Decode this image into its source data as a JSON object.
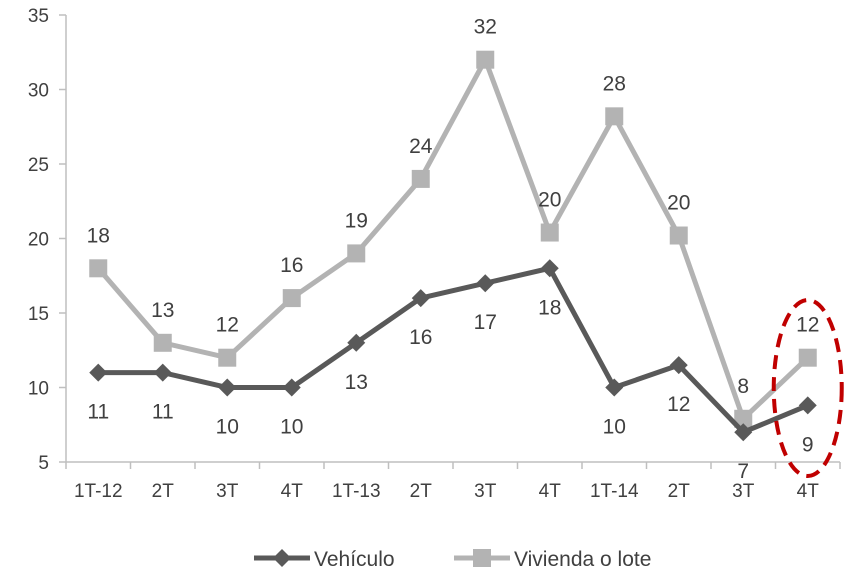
{
  "chart_data": {
    "type": "line",
    "categories": [
      "1T-12",
      "2T",
      "3T",
      "4T",
      "1T-13",
      "2T",
      "3T",
      "4T",
      "1T-14",
      "2T",
      "3T",
      "4T"
    ],
    "series": [
      {
        "name": "Vehículo",
        "values": [
          11,
          11,
          10,
          10,
          13,
          16,
          17,
          18,
          10,
          11.5,
          7,
          8.8
        ],
        "labels": [
          "11",
          "11",
          "10",
          "10",
          "13",
          "16",
          "17",
          "18",
          "10",
          "12",
          "7",
          "9"
        ],
        "color": "#595959",
        "marker": "diamond",
        "label_position": "below"
      },
      {
        "name": "Vivienda o lote",
        "values": [
          18,
          13,
          12,
          16,
          19,
          24,
          32,
          20.4,
          28.2,
          20.2,
          7.9,
          12
        ],
        "labels": [
          "18",
          "13",
          "12",
          "16",
          "19",
          "24",
          "32",
          "20",
          "28",
          "20",
          "8",
          "12"
        ],
        "color": "#b3b3b3",
        "marker": "square",
        "label_position": "above"
      }
    ],
    "ylim": [
      5,
      35
    ],
    "yticks": [
      5,
      10,
      15,
      20,
      25,
      30,
      35
    ],
    "title": "",
    "xlabel": "",
    "ylabel": "",
    "grid": false,
    "legend_position": "bottom",
    "highlight": {
      "shape": "dashed-ellipse",
      "category_index": 11,
      "color": "#c00000"
    }
  }
}
